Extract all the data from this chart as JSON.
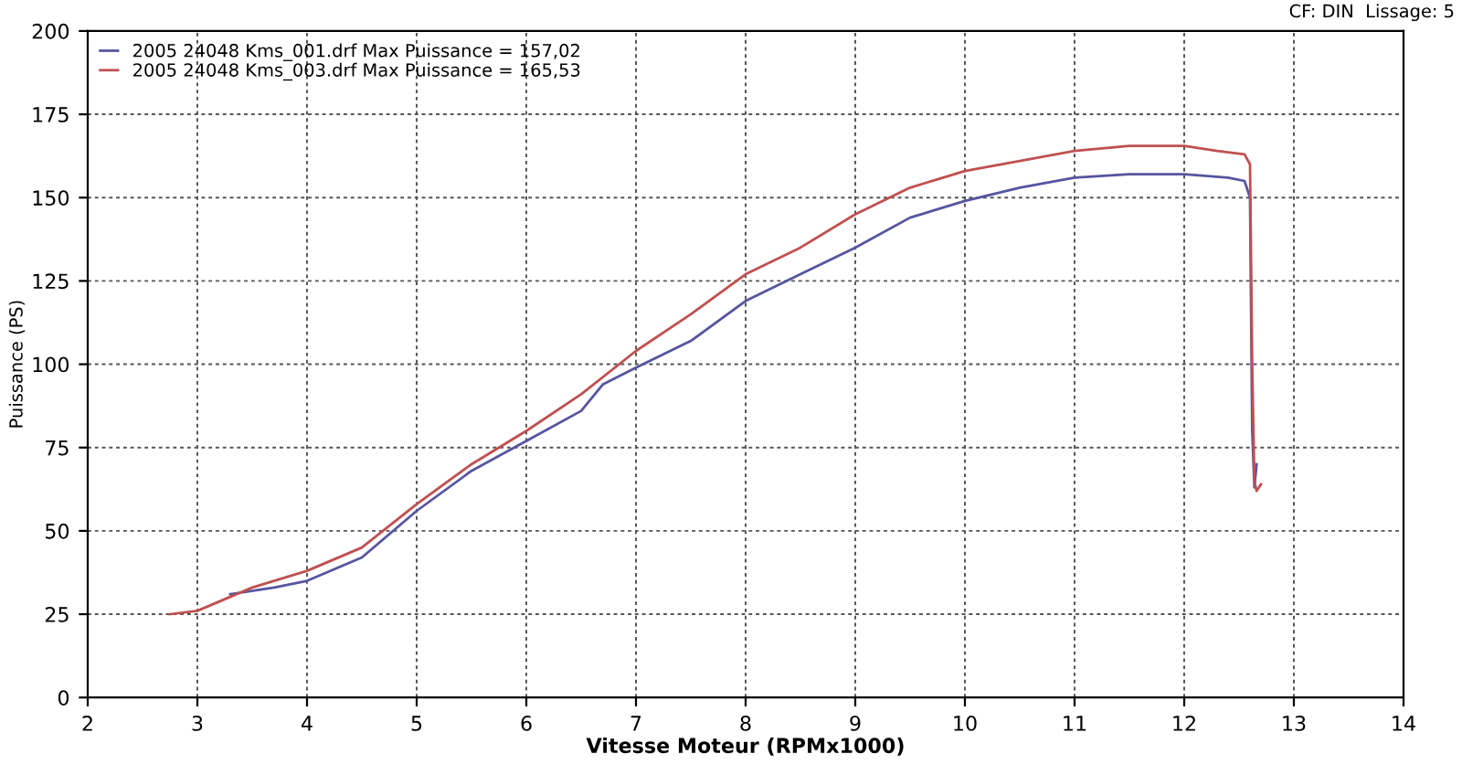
{
  "chart_data": {
    "type": "line",
    "xlabel": "Vitesse Moteur (RPMx1000)",
    "ylabel": "Puissance (PS)",
    "annotations": [
      "CF: DIN  Lissage: 5"
    ],
    "xlim": [
      2,
      14
    ],
    "xticks": [
      2,
      3,
      4,
      5,
      6,
      7,
      8,
      9,
      10,
      11,
      12,
      13,
      14
    ],
    "ylim": [
      0,
      200
    ],
    "yticks": [
      0,
      25,
      50,
      75,
      100,
      125,
      150,
      175,
      200
    ],
    "grid": true,
    "legend": "top left",
    "marker": "none",
    "line_style": "solid",
    "series": [
      {
        "name": "2005 24048 Kms_001.drf Max Puissance = 157,02",
        "color": "#5555a0",
        "x": [
          3.3,
          3.7,
          4,
          4.5,
          5,
          5.5,
          6,
          6.5,
          6.7,
          7,
          7.5,
          8,
          8.5,
          9,
          9.5,
          10,
          10.5,
          11,
          11.5,
          12,
          12.4,
          12.55,
          12.6,
          12.62,
          12.64,
          12.66
        ],
        "values": [
          31,
          33,
          35,
          42,
          56,
          68,
          77,
          86,
          94,
          99,
          107,
          119,
          127,
          135,
          144,
          149,
          153,
          156,
          157,
          157,
          156,
          155,
          150,
          80,
          63,
          70
        ]
      },
      {
        "name": "2005 24048 Kms_003.drf Max Puissance = 165,53",
        "color": "#c05050",
        "x": [
          2.75,
          3,
          3.5,
          4,
          4.5,
          5,
          5.5,
          6,
          6.5,
          7,
          7.5,
          8,
          8.5,
          9,
          9.5,
          10,
          10.5,
          11,
          11.5,
          12,
          12.3,
          12.55,
          12.6,
          12.62,
          12.64,
          12.66,
          12.7
        ],
        "values": [
          25,
          26,
          33,
          38,
          45,
          58,
          70,
          80,
          91,
          104,
          115,
          127,
          135,
          145,
          153,
          158,
          161,
          164,
          165.5,
          165.5,
          164,
          163,
          160,
          100,
          65,
          62,
          64
        ]
      }
    ]
  }
}
